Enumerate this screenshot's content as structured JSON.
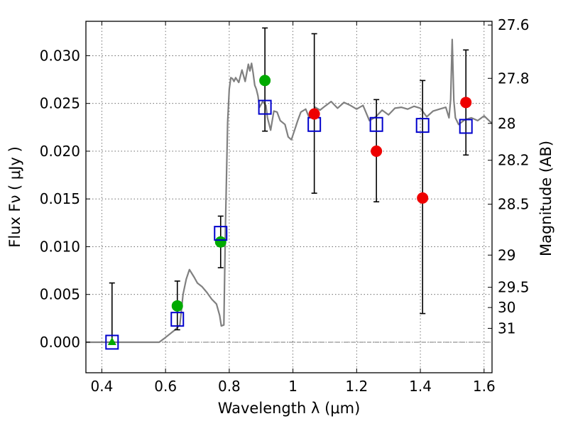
{
  "chart_data": {
    "type": "scatter",
    "title": "",
    "xlabel": "Wavelength  λ (μm)",
    "ylabel": "Flux  Fν  ( μJy )",
    "y2label": "Magnitude (AB)",
    "xlim": [
      0.35,
      1.625
    ],
    "ylim": [
      -0.0032,
      0.0336
    ],
    "grid": true,
    "legend": "none",
    "xticks": [
      0.4,
      0.6,
      0.8,
      1.0,
      1.2,
      1.4,
      1.6
    ],
    "xtick_labels": [
      "0.4",
      "0.6",
      "0.8",
      "1",
      "1.2",
      "1.4",
      "1.6"
    ],
    "yticks": [
      0.0,
      0.005,
      0.01,
      0.015,
      0.02,
      0.025,
      0.03
    ],
    "ytick_labels": [
      "0.000",
      "0.005",
      "0.010",
      "0.015",
      "0.020",
      "0.025",
      "0.030"
    ],
    "y2ticks": [
      {
        "label": "27.6",
        "flux": 0.03321
      },
      {
        "label": "27.8",
        "flux": 0.02763
      },
      {
        "label": "28",
        "flux": 0.02291
      },
      {
        "label": "28.2",
        "flux": 0.01905
      },
      {
        "label": "28.5",
        "flux": 0.01445
      },
      {
        "label": "29",
        "flux": 0.00912
      },
      {
        "label": "29.5",
        "flux": 0.00575
      },
      {
        "label": "30",
        "flux": 0.00363
      },
      {
        "label": "31",
        "flux": 0.00145
      }
    ],
    "colors": {
      "spectrum": "#808080",
      "model_box": "#0000cc",
      "green_point": "#00aa00",
      "red_point": "#ee0000",
      "errorbar": "#000000",
      "zero_line": "#777777"
    },
    "series": [
      {
        "kind": "model-spectrum",
        "x": [
          0.35,
          0.58,
          0.6,
          0.63,
          0.645,
          0.655,
          0.665,
          0.675,
          0.69,
          0.7,
          0.715,
          0.73,
          0.745,
          0.76,
          0.77,
          0.775,
          0.783,
          0.788,
          0.795,
          0.8,
          0.805,
          0.81,
          0.815,
          0.82,
          0.83,
          0.84,
          0.85,
          0.86,
          0.865,
          0.87,
          0.875,
          0.88,
          0.885,
          0.89,
          0.895,
          0.905,
          0.915,
          0.92,
          0.93,
          0.94,
          0.95,
          0.96,
          0.975,
          0.985,
          0.995,
          1.005,
          1.01,
          1.015,
          1.025,
          1.04,
          1.05,
          1.06,
          1.07,
          1.085,
          1.1,
          1.12,
          1.14,
          1.16,
          1.18,
          1.2,
          1.22,
          1.24,
          1.26,
          1.28,
          1.3,
          1.32,
          1.34,
          1.36,
          1.38,
          1.4,
          1.42,
          1.44,
          1.46,
          1.48,
          1.49,
          1.495,
          1.5,
          1.505,
          1.51,
          1.52,
          1.54,
          1.56,
          1.58,
          1.6,
          1.625
        ],
        "y": [
          0.0,
          0.0,
          0.0005,
          0.0013,
          0.0018,
          0.005,
          0.0066,
          0.0076,
          0.0068,
          0.0062,
          0.0058,
          0.0052,
          0.0045,
          0.004,
          0.0028,
          0.0017,
          0.0018,
          0.012,
          0.023,
          0.0265,
          0.0277,
          0.0276,
          0.0273,
          0.0277,
          0.0272,
          0.0285,
          0.0273,
          0.0291,
          0.0284,
          0.0292,
          0.0282,
          0.0269,
          0.0265,
          0.0258,
          0.0246,
          0.0252,
          0.0248,
          0.0235,
          0.0222,
          0.0242,
          0.0241,
          0.0232,
          0.0228,
          0.0215,
          0.0212,
          0.0222,
          0.0227,
          0.0232,
          0.0241,
          0.0244,
          0.0236,
          0.024,
          0.0246,
          0.0243,
          0.0247,
          0.0252,
          0.0245,
          0.0251,
          0.0248,
          0.0244,
          0.0248,
          0.0232,
          0.0236,
          0.0243,
          0.0238,
          0.0245,
          0.0246,
          0.0244,
          0.0247,
          0.0245,
          0.0236,
          0.0242,
          0.0244,
          0.0246,
          0.0235,
          0.0254,
          0.0317,
          0.0253,
          0.0235,
          0.0228,
          0.0233,
          0.0235,
          0.0232,
          0.0237,
          0.0229
        ]
      },
      {
        "kind": "model-photometry-boxes",
        "x": [
          0.432,
          0.637,
          0.773,
          0.912,
          1.067,
          1.262,
          1.407,
          1.543
        ],
        "y": [
          0.0,
          0.0024,
          0.0114,
          0.0246,
          0.0228,
          0.0228,
          0.0227,
          0.0226
        ]
      },
      {
        "kind": "observed-green",
        "points": [
          {
            "x": 0.637,
            "y": 0.0038,
            "yerr_lo": 0.0013,
            "yerr_hi": 0.0064,
            "marker": "circle"
          },
          {
            "x": 0.773,
            "y": 0.0105,
            "yerr_lo": 0.0078,
            "yerr_hi": 0.0132,
            "marker": "circle"
          },
          {
            "x": 0.912,
            "y": 0.0274,
            "yerr_lo": 0.0221,
            "yerr_hi": 0.0329,
            "marker": "circle"
          }
        ]
      },
      {
        "kind": "observed-upper-limit",
        "points": [
          {
            "x": 0.432,
            "y": 0.0,
            "yerr_lo": 0.0,
            "yerr_hi": 0.0062,
            "marker": "triangle"
          }
        ]
      },
      {
        "kind": "observed-red",
        "points": [
          {
            "x": 1.067,
            "y": 0.0239,
            "yerr_lo": 0.0156,
            "yerr_hi": 0.0323,
            "marker": "circle"
          },
          {
            "x": 1.262,
            "y": 0.02,
            "yerr_lo": 0.0147,
            "yerr_hi": 0.0254,
            "marker": "circle"
          },
          {
            "x": 1.407,
            "y": 0.0151,
            "yerr_lo": 0.003,
            "yerr_hi": 0.0274,
            "marker": "circle"
          },
          {
            "x": 1.543,
            "y": 0.0251,
            "yerr_lo": 0.0196,
            "yerr_hi": 0.0306,
            "marker": "circle"
          }
        ]
      }
    ]
  }
}
